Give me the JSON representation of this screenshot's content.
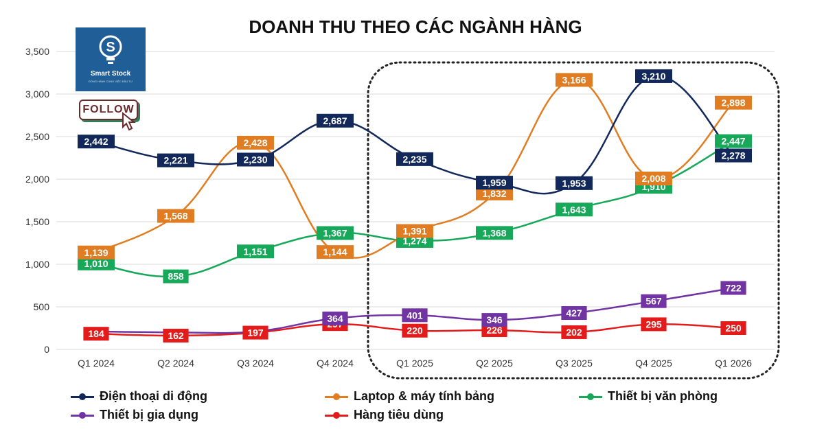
{
  "chart_data": {
    "type": "line",
    "title": "DOANH THU THEO CÁC NGÀNH HÀNG",
    "categories": [
      "Q1 2024",
      "Q2 2024",
      "Q3 2024",
      "Q4 2024",
      "Q1 2025",
      "Q2 2025",
      "Q3 2025",
      "Q4 2025",
      "Q1 2026"
    ],
    "ylim": [
      0,
      3500
    ],
    "yticks": [
      "0",
      "500",
      "1,000",
      "1,500",
      "2,000",
      "2,500",
      "3,000",
      "3,500"
    ],
    "grid": true,
    "legend_position": "bottom",
    "series": [
      {
        "name": "Điện thoại di động",
        "color": "#12285a",
        "values": [
          2442,
          2221,
          2230,
          2687,
          2235,
          1959,
          1953,
          3210,
          2278
        ],
        "labels": [
          "2,442",
          "2,221",
          "2,230",
          "2,687",
          "2,235",
          "1,959",
          "1,953",
          "3,210",
          "2,278"
        ]
      },
      {
        "name": "Laptop & máy tính bảng",
        "color": "#e07d22",
        "values": [
          1139,
          1568,
          2428,
          1144,
          1391,
          1832,
          3166,
          2008,
          2898
        ],
        "labels": [
          "1,139",
          "1,568",
          "2,428",
          "1,144",
          "1,391",
          "1,832",
          "3,166",
          "2,008",
          "2,898"
        ]
      },
      {
        "name": "Thiết bị văn phòng",
        "color": "#18a85a",
        "values": [
          1010,
          858,
          1151,
          1367,
          1274,
          1368,
          1643,
          1910,
          2447
        ],
        "labels": [
          "1,010",
          "858",
          "1,151",
          "1,367",
          "1,274",
          "1,368",
          "1,643",
          "1,910",
          "2,447"
        ]
      },
      {
        "name": "Thiết bị gia dụng",
        "color": "#7233a3",
        "values": [
          210,
          200,
          210,
          364,
          401,
          346,
          427,
          567,
          722
        ],
        "labels": [
          "",
          "",
          "",
          "364",
          "401",
          "346",
          "427",
          "567",
          "722"
        ]
      },
      {
        "name": "Hàng tiêu dùng",
        "color": "#e31b1b",
        "values": [
          184,
          162,
          197,
          297,
          220,
          226,
          202,
          295,
          250
        ],
        "labels": [
          "184",
          "162",
          "197",
          "297",
          "220",
          "226",
          "202",
          "295",
          "250"
        ]
      }
    ]
  },
  "logo": {
    "name": "Smart Stock",
    "tagline": "ĐỒNG HÀNH CÙNG VIỆC ĐẦU TƯ",
    "letter": "S"
  },
  "follow": {
    "label": "FOLLOW"
  }
}
